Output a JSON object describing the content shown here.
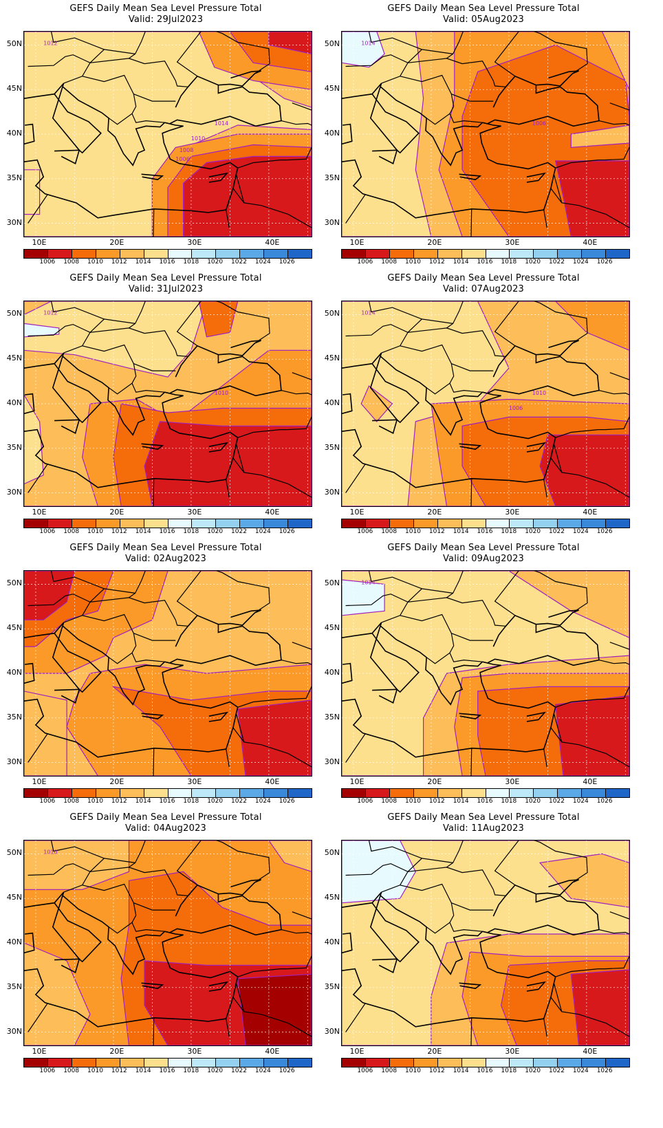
{
  "panels": [
    {
      "title": "GEFS Daily Mean Sea Level Pressure Total",
      "valid": "Valid: 29Jul2023",
      "contour_labels": [
        "1012",
        "1014",
        "1010",
        "1008",
        "1006"
      ],
      "pattern": "a"
    },
    {
      "title": "GEFS Daily Mean Sea Level Pressure Total",
      "valid": "Valid: 05Aug2023",
      "contour_labels": [
        "1014",
        "1006"
      ],
      "pattern": "b"
    },
    {
      "title": "GEFS Daily Mean Sea Level Pressure Total",
      "valid": "Valid: 31Jul2023",
      "contour_labels": [
        "1012",
        "1010"
      ],
      "pattern": "c"
    },
    {
      "title": "GEFS Daily Mean Sea Level Pressure Total",
      "valid": "Valid: 07Aug2023",
      "contour_labels": [
        "1014",
        "1010",
        "1006"
      ],
      "pattern": "d"
    },
    {
      "title": "GEFS Daily Mean Sea Level Pressure Total",
      "valid": "Valid: 02Aug2023",
      "contour_labels": [],
      "pattern": "e"
    },
    {
      "title": "GEFS Daily Mean Sea Level Pressure Total",
      "valid": "Valid: 09Aug2023",
      "contour_labels": [
        "1014"
      ],
      "pattern": "f"
    },
    {
      "title": "GEFS Daily Mean Sea Level Pressure Total",
      "valid": "Valid: 04Aug2023",
      "contour_labels": [
        "1010"
      ],
      "pattern": "g"
    },
    {
      "title": "GEFS Daily Mean Sea Level Pressure Total",
      "valid": "Valid: 11Aug2023",
      "contour_labels": [],
      "pattern": "h"
    }
  ],
  "lat_ticks": [
    "50N",
    "45N",
    "40N",
    "35N",
    "30N"
  ],
  "lon_ticks": [
    "10E",
    "20E",
    "30E",
    "40E"
  ],
  "colorbar": {
    "labels": [
      "1006",
      "1008",
      "1010",
      "1012",
      "1014",
      "1016",
      "1018",
      "1020",
      "1022",
      "1024",
      "1026"
    ],
    "colors": [
      "#a50000",
      "#d7191c",
      "#f46d0a",
      "#fb9a29",
      "#fdbe5a",
      "#fde08e",
      "#e7fafd",
      "#bde8f7",
      "#94d0f0",
      "#5aa9e6",
      "#3a88d9",
      "#1f66c9"
    ]
  },
  "palette": {
    "p1004": "#a50000",
    "p1006": "#d7191c",
    "p1008": "#f46d0a",
    "p1010": "#fb9a29",
    "p1012": "#fdbe5a",
    "p1014": "#fde08e",
    "p1016": "#e7fafd",
    "contour": "#a020c0",
    "grid": "#b0b0b0"
  }
}
